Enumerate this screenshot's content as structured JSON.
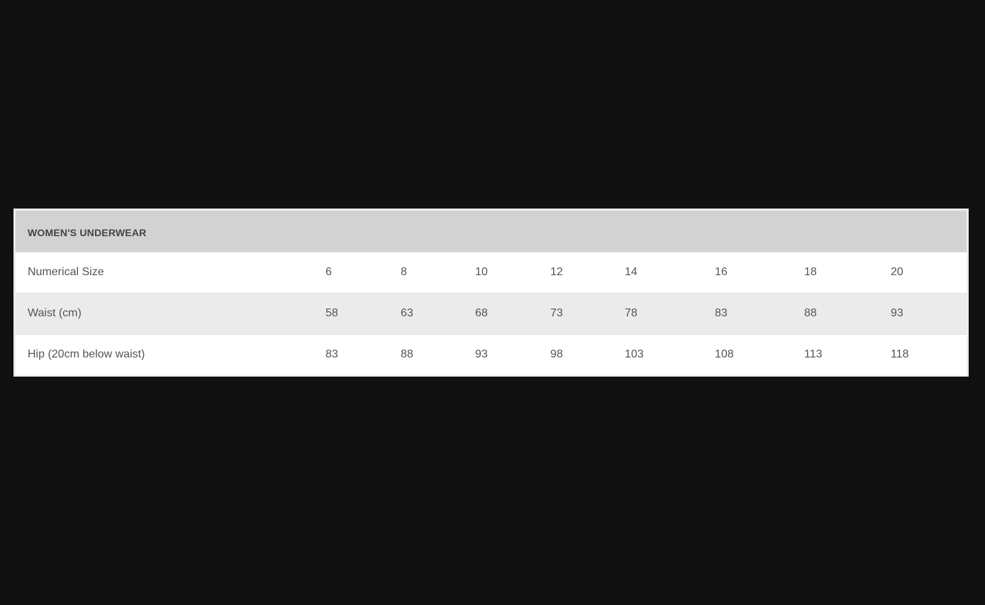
{
  "table": {
    "title": "WOMEN'S UNDERWEAR",
    "rows": [
      {
        "label": "Numerical Size",
        "values": [
          "6",
          "8",
          "10",
          "12",
          "14",
          "16",
          "18",
          "20"
        ]
      },
      {
        "label": "Waist (cm)",
        "values": [
          "58",
          "63",
          "68",
          "73",
          "78",
          "83",
          "88",
          "93"
        ]
      },
      {
        "label": "Hip (20cm below waist)",
        "values": [
          "83",
          "88",
          "93",
          "98",
          "103",
          "108",
          "113",
          "118"
        ]
      }
    ]
  }
}
